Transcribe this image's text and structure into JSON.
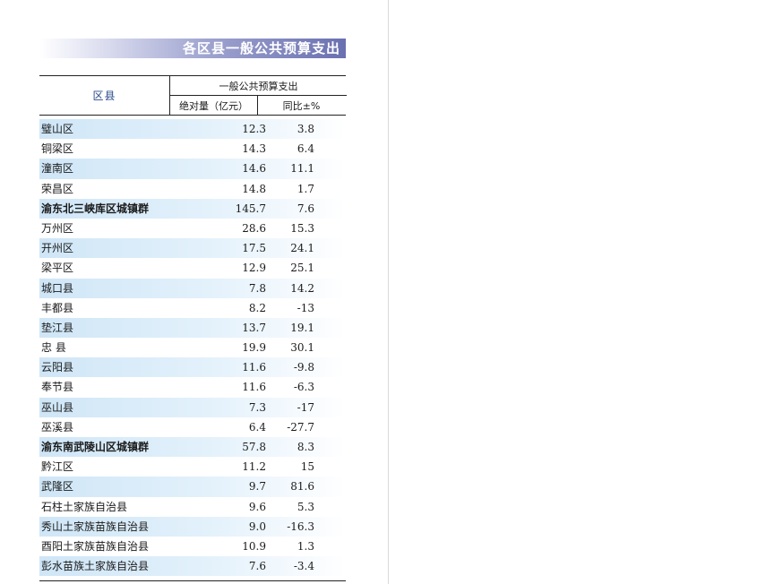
{
  "banner": {
    "title": "各区县一般公共预算支出"
  },
  "table": {
    "col_region": "区县",
    "col_group": "一般公共预算支出",
    "col_abs": "绝对量（亿元）",
    "col_yoy": "同比±%",
    "rows": [
      {
        "name": "璧山区",
        "abs": "12.3",
        "yoy": "3.8",
        "bold": false
      },
      {
        "name": "铜梁区",
        "abs": "14.3",
        "yoy": "6.4",
        "bold": false
      },
      {
        "name": "潼南区",
        "abs": "14.6",
        "yoy": "11.1",
        "bold": false
      },
      {
        "name": "荣昌区",
        "abs": "14.8",
        "yoy": "1.7",
        "bold": false
      },
      {
        "name": "渝东北三峡库区城镇群",
        "abs": "145.7",
        "yoy": "7.6",
        "bold": true
      },
      {
        "name": "万州区",
        "abs": "28.6",
        "yoy": "15.3",
        "bold": false
      },
      {
        "name": "开州区",
        "abs": "17.5",
        "yoy": "24.1",
        "bold": false
      },
      {
        "name": "梁平区",
        "abs": "12.9",
        "yoy": "25.1",
        "bold": false
      },
      {
        "name": "城口县",
        "abs": "7.8",
        "yoy": "14.2",
        "bold": false
      },
      {
        "name": "丰都县",
        "abs": "8.2",
        "yoy": "-13",
        "bold": false
      },
      {
        "name": "垫江县",
        "abs": "13.7",
        "yoy": "19.1",
        "bold": false
      },
      {
        "name": "忠 县",
        "abs": "19.9",
        "yoy": "30.1",
        "bold": false
      },
      {
        "name": "云阳县",
        "abs": "11.6",
        "yoy": "-9.8",
        "bold": false
      },
      {
        "name": "奉节县",
        "abs": "11.6",
        "yoy": "-6.3",
        "bold": false
      },
      {
        "name": "巫山县",
        "abs": "7.3",
        "yoy": "-17",
        "bold": false
      },
      {
        "name": "巫溪县",
        "abs": "6.4",
        "yoy": "-27.7",
        "bold": false
      },
      {
        "name": "渝东南武陵山区城镇群",
        "abs": "57.8",
        "yoy": "8.3",
        "bold": true
      },
      {
        "name": "黔江区",
        "abs": "11.2",
        "yoy": "15",
        "bold": false
      },
      {
        "name": "武隆区",
        "abs": "9.7",
        "yoy": "81.6",
        "bold": false
      },
      {
        "name": "石柱土家族自治县",
        "abs": "9.6",
        "yoy": "5.3",
        "bold": false
      },
      {
        "name": "秀山土家族苗族自治县",
        "abs": "9.0",
        "yoy": "-16.3",
        "bold": false
      },
      {
        "name": "酉阳土家族苗族自治县",
        "abs": "10.9",
        "yoy": "1.3",
        "bold": false
      },
      {
        "name": "彭水苗族土家族自治县",
        "abs": "7.6",
        "yoy": "-3.4",
        "bold": false
      }
    ]
  }
}
